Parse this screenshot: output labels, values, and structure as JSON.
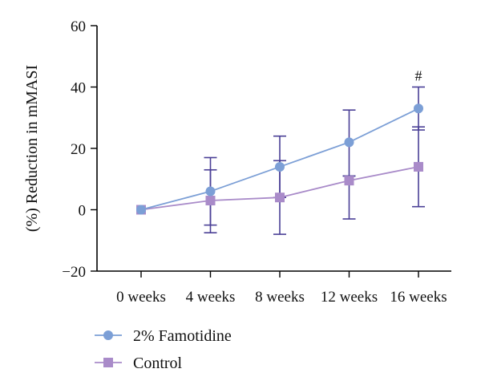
{
  "chart_data": {
    "type": "line",
    "categories": [
      "0 weeks",
      "4 weeks",
      "8 weeks",
      "12 weeks",
      "16 weeks"
    ],
    "ylabel": "(%) Reduction in mMASI",
    "ylim": [
      -20,
      60
    ],
    "yticks": [
      -20,
      0,
      20,
      40,
      60
    ],
    "grid": false,
    "legend_placement": "bottom-left",
    "series": [
      {
        "name": "2% Famotidine",
        "color": "#7c9fd6",
        "error_color": "#4a3f96",
        "marker": "circle",
        "values": [
          0,
          6,
          14,
          22,
          33
        ],
        "error_upper": [
          0,
          17,
          24,
          32.5,
          40
        ],
        "error_lower": [
          0,
          -5,
          4,
          11,
          26
        ]
      },
      {
        "name": "Control",
        "color": "#a98bc9",
        "error_color": "#4a3f96",
        "marker": "square",
        "values": [
          0,
          3,
          4,
          9.5,
          14
        ],
        "error_upper": [
          0,
          13,
          16,
          11,
          27
        ],
        "error_lower": [
          0,
          -7.5,
          -8,
          -3,
          1
        ]
      }
    ],
    "annotations": [
      {
        "category": "16 weeks",
        "y": 40,
        "text": "#"
      }
    ]
  }
}
